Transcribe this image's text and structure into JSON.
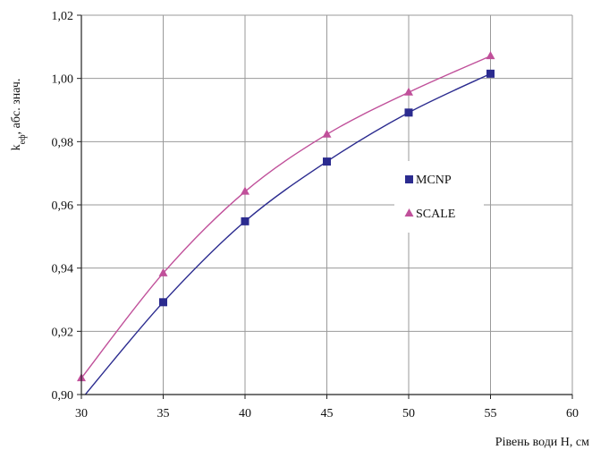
{
  "chart_data": {
    "type": "line",
    "xlabel": "Рівень води H, см",
    "ylabel_main": "k",
    "ylabel_sub": "еф",
    "ylabel_rest": ", абс. знач.",
    "xlim": [
      30,
      60
    ],
    "ylim": [
      0.9,
      1.02
    ],
    "x_ticks": [
      30,
      35,
      40,
      45,
      50,
      55,
      60
    ],
    "x_tick_labels": [
      "30",
      "35",
      "40",
      "45",
      "50",
      "55",
      "60"
    ],
    "y_ticks": [
      0.9,
      0.92,
      0.94,
      0.96,
      0.98,
      1.0,
      1.02
    ],
    "y_tick_labels": [
      "0,90",
      "0,92",
      "0,94",
      "0,96",
      "0,98",
      "1,00",
      "1,02"
    ],
    "grid": true,
    "legend_position": "right-middle",
    "series": [
      {
        "name": "MCNP",
        "color": "#2b2b8f",
        "marker": "square",
        "x": [
          30,
          35,
          40,
          45,
          50,
          55
        ],
        "y": [
          0.8985,
          0.9292,
          0.9548,
          0.9737,
          0.9892,
          1.0015
        ]
      },
      {
        "name": "SCALE",
        "color": "#c0509a",
        "marker": "triangle",
        "x": [
          30,
          35,
          40,
          45,
          50,
          55
        ],
        "y": [
          0.9052,
          0.9384,
          0.9642,
          0.9823,
          0.9956,
          1.0071
        ]
      }
    ]
  }
}
